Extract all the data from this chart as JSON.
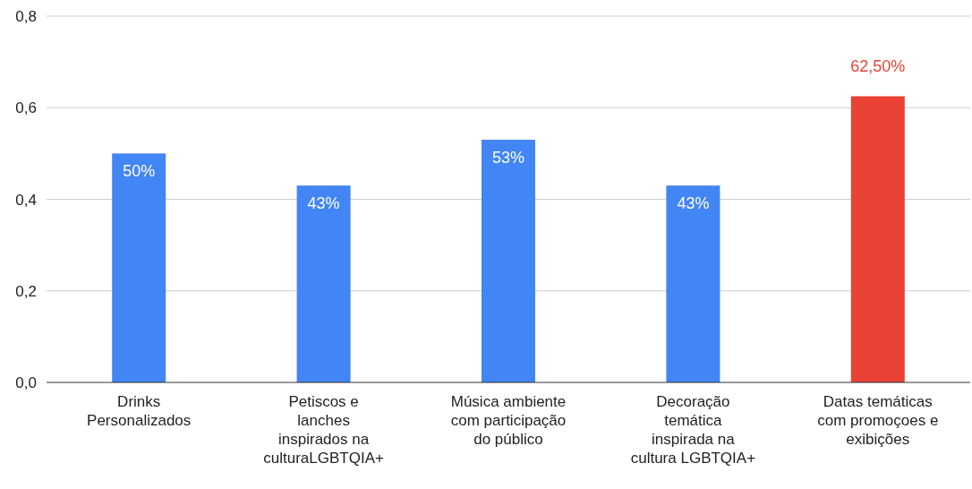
{
  "chart_data": {
    "type": "bar",
    "categories": [
      "Drinks Personalizados",
      "Petiscos e lanches inspirados na culturaLGBTQIA+",
      "Música ambiente com participação do público",
      "Decoração temática inspirada na cultura LGBTQIA+",
      "Datas temáticas com promoçoes e exibições"
    ],
    "values": [
      0.5,
      0.43,
      0.53,
      0.43,
      0.625
    ],
    "colors": [
      "#4285f4",
      "#4285f4",
      "#4285f4",
      "#4285f4",
      "#ea4335"
    ],
    "value_labels": [
      "50%",
      "43%",
      "53%",
      "43%",
      "62,50%"
    ],
    "ylim": [
      0,
      0.8
    ],
    "yticks": [
      {
        "value": 0,
        "label": "0,0"
      },
      {
        "value": 0.2,
        "label": "0,2"
      },
      {
        "value": 0.4,
        "label": "0,4"
      },
      {
        "value": 0.6,
        "label": "0,6"
      },
      {
        "value": 0.8,
        "label": "0,8"
      }
    ],
    "grid": "y"
  }
}
